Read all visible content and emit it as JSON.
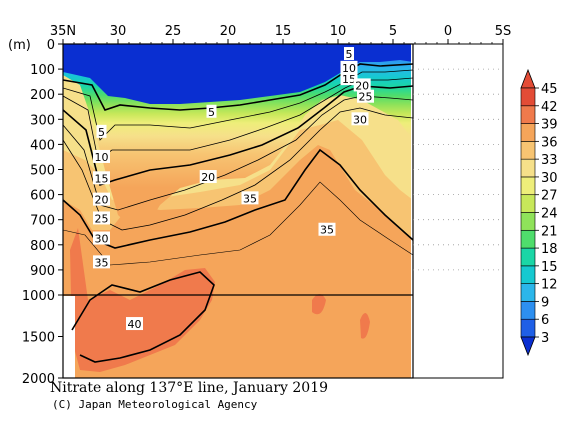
{
  "chart_data": {
    "type": "heatmap",
    "title": "Nitrate along 137°E line, January 2019",
    "credit": "(C) Japan Meteorological Agency",
    "x_axis": {
      "ticks": [
        "35N",
        "30",
        "25",
        "20",
        "15",
        "10",
        "5",
        "0",
        "5S"
      ],
      "values": [
        35,
        30,
        25,
        20,
        15,
        10,
        5,
        0,
        -5
      ],
      "xlim": [
        35,
        -5
      ]
    },
    "y_axis": {
      "unit_label": "(m)",
      "ticks": [
        "0",
        "100",
        "200",
        "300",
        "400",
        "500",
        "600",
        "700",
        "800",
        "900",
        "1000",
        "1500",
        "2000"
      ],
      "values": [
        0,
        100,
        200,
        300,
        400,
        500,
        600,
        700,
        800,
        900,
        1000,
        1500,
        2000
      ],
      "upper_range": [
        0,
        1000
      ],
      "lower_range": [
        1000,
        2000
      ]
    },
    "colorbar": {
      "levels": [
        "3",
        "6",
        "9",
        "12",
        "15",
        "18",
        "21",
        "24",
        "27",
        "30",
        "33",
        "36",
        "39",
        "42",
        "45"
      ],
      "colors": [
        "#0a2fd1",
        "#1f5fe6",
        "#2d8ff0",
        "#2bb6ea",
        "#16c9d0",
        "#1bd6a6",
        "#4fdd6c",
        "#8fe25a",
        "#c8e85a",
        "#eeee7a",
        "#f6e08a",
        "#f7c472",
        "#f5a55a",
        "#f07a4c",
        "#e34c36"
      ]
    },
    "sections": [
      {
        "lat_from": 32.5,
        "lat_to": 30.5,
        "depth_5": 110,
        "depth_20": 390,
        "depth_35": 760
      },
      {
        "lat_from": 30.5,
        "lat_to": 27,
        "depth_5": 160,
        "depth_20": 600,
        "depth_35": 800
      },
      {
        "lat_from": 27,
        "lat_to": 20,
        "depth_5": 230,
        "depth_20": 500,
        "depth_35": 620
      },
      {
        "lat_from": 20,
        "lat_to": 11,
        "depth_5": 180,
        "depth_20": 300,
        "depth_35": 520
      },
      {
        "lat_from": 11,
        "lat_to": 3,
        "depth_5": 60,
        "depth_20": 160,
        "depth_35": 670
      }
    ],
    "contour_labels": [
      {
        "text": "5",
        "lat": 9,
        "depth": 40
      },
      {
        "text": "10",
        "lat": 9,
        "depth": 95
      },
      {
        "text": "15",
        "lat": 9,
        "depth": 140
      },
      {
        "text": "20",
        "lat": 7.8,
        "depth": 165
      },
      {
        "text": "25",
        "lat": 7.5,
        "depth": 210
      },
      {
        "text": "5",
        "lat": 21.5,
        "depth": 270
      },
      {
        "text": "30",
        "lat": 8,
        "depth": 300
      },
      {
        "text": "5",
        "lat": 31.5,
        "depth": 350
      },
      {
        "text": "10",
        "lat": 31.5,
        "depth": 450
      },
      {
        "text": "20",
        "lat": 21.8,
        "depth": 530
      },
      {
        "text": "15",
        "lat": 31.5,
        "depth": 535
      },
      {
        "text": "20",
        "lat": 31.5,
        "depth": 620
      },
      {
        "text": "35",
        "lat": 18,
        "depth": 615
      },
      {
        "text": "25",
        "lat": 31.5,
        "depth": 695
      },
      {
        "text": "35",
        "lat": 11,
        "depth": 740
      },
      {
        "text": "30",
        "lat": 31.5,
        "depth": 775
      },
      {
        "text": "35",
        "lat": 31.5,
        "depth": 870
      },
      {
        "text": "40",
        "lat": 28.5,
        "depth": 1350
      }
    ]
  }
}
